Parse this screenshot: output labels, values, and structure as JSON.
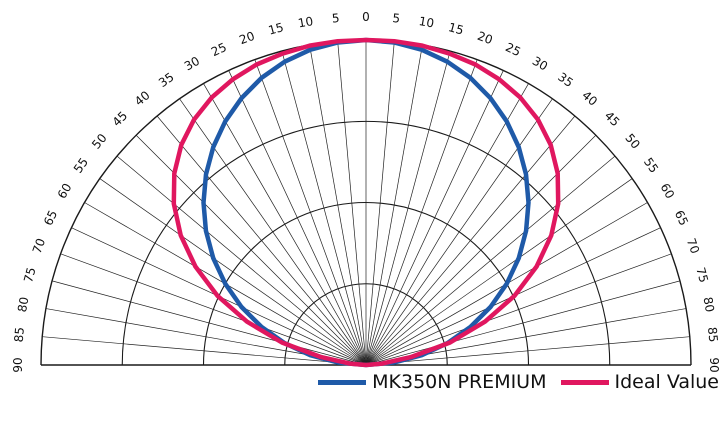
{
  "chart_data": {
    "type": "polar",
    "angles": [
      0,
      5,
      10,
      15,
      20,
      25,
      30,
      35,
      40,
      45,
      50,
      55,
      60,
      65,
      70,
      75,
      80,
      85,
      90
    ],
    "tick_labels_left": [
      "0",
      "5",
      "10",
      "15",
      "20",
      "25",
      "30",
      "35",
      "40",
      "45",
      "50",
      "55",
      "60",
      "65",
      "70",
      "75",
      "80",
      "85",
      "90"
    ],
    "tick_labels_right": [
      "0",
      "5",
      "10",
      "15",
      "20",
      "25",
      "30",
      "35",
      "40",
      "45",
      "50",
      "55",
      "60",
      "65",
      "70",
      "75",
      "80",
      "85",
      "90"
    ],
    "grid": true,
    "r_rings": [
      0.25,
      0.5,
      0.75,
      1.0
    ],
    "rlim": [
      0,
      1
    ],
    "legend_position": "bottom-right",
    "series": [
      {
        "name": "MK350N PREMIUM",
        "color": "#1f5aa8",
        "values": [
          1.0,
          0.996,
          0.985,
          0.966,
          0.94,
          0.906,
          0.866,
          0.819,
          0.766,
          0.707,
          0.643,
          0.574,
          0.5,
          0.423,
          0.342,
          0.259,
          0.174,
          0.087,
          0.0
        ]
      },
      {
        "name": "Ideal Value",
        "color": "#e0175f",
        "values": [
          1.0,
          1.0,
          0.998,
          0.992,
          0.984,
          0.97,
          0.95,
          0.922,
          0.884,
          0.834,
          0.772,
          0.696,
          0.606,
          0.504,
          0.39,
          0.268,
          0.14,
          0.05,
          0.0
        ]
      }
    ]
  }
}
